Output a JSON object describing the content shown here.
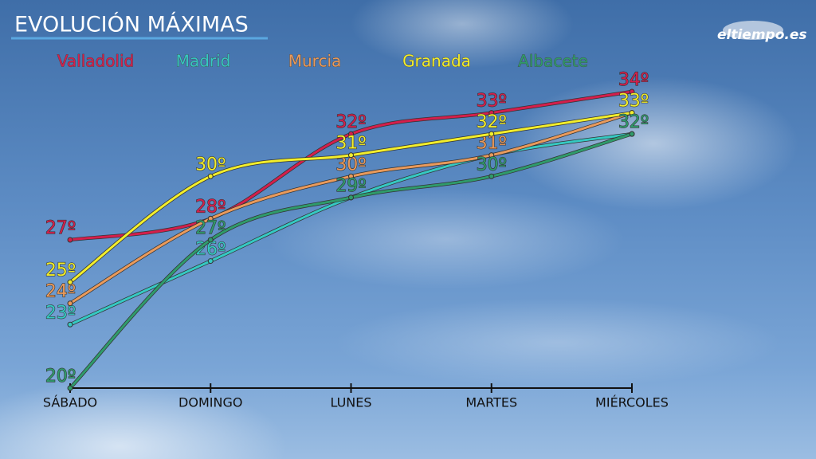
{
  "chart_data": {
    "type": "line",
    "title": "EVOLUCIÓN MÁXIMAS",
    "logo": "eltiempo.es",
    "categories": [
      "SÁBADO",
      "DOMINGO",
      "LUNES",
      "MARTES",
      "MIÉRCOLES"
    ],
    "series": [
      {
        "name": "Valladolid",
        "color": "#d41f4c",
        "values": [
          27,
          28,
          32,
          33,
          34
        ],
        "value_labels": [
          "27º",
          "28º",
          "32º",
          "33º",
          "34º"
        ]
      },
      {
        "name": "Madrid",
        "color": "#35c9c2",
        "values": [
          23,
          26,
          29,
          31,
          32
        ],
        "value_labels": [
          "23º",
          "26º",
          null,
          null,
          null
        ]
      },
      {
        "name": "Murcia",
        "color": "#e99a5c",
        "values": [
          24,
          28,
          30,
          31,
          33
        ],
        "value_labels": [
          "24º",
          null,
          "30º",
          "31º",
          null
        ]
      },
      {
        "name": "Granada",
        "color": "#f2ee2c",
        "values": [
          25,
          30,
          31,
          32,
          33
        ],
        "value_labels": [
          "25º",
          "30º",
          "31º",
          "32º",
          "33º"
        ]
      },
      {
        "name": "Albacete",
        "color": "#2f9b6b",
        "values": [
          20,
          27,
          29,
          30,
          32
        ],
        "value_labels": [
          "20º",
          "27º",
          "29º",
          "30º",
          "32º"
        ]
      }
    ]
  }
}
